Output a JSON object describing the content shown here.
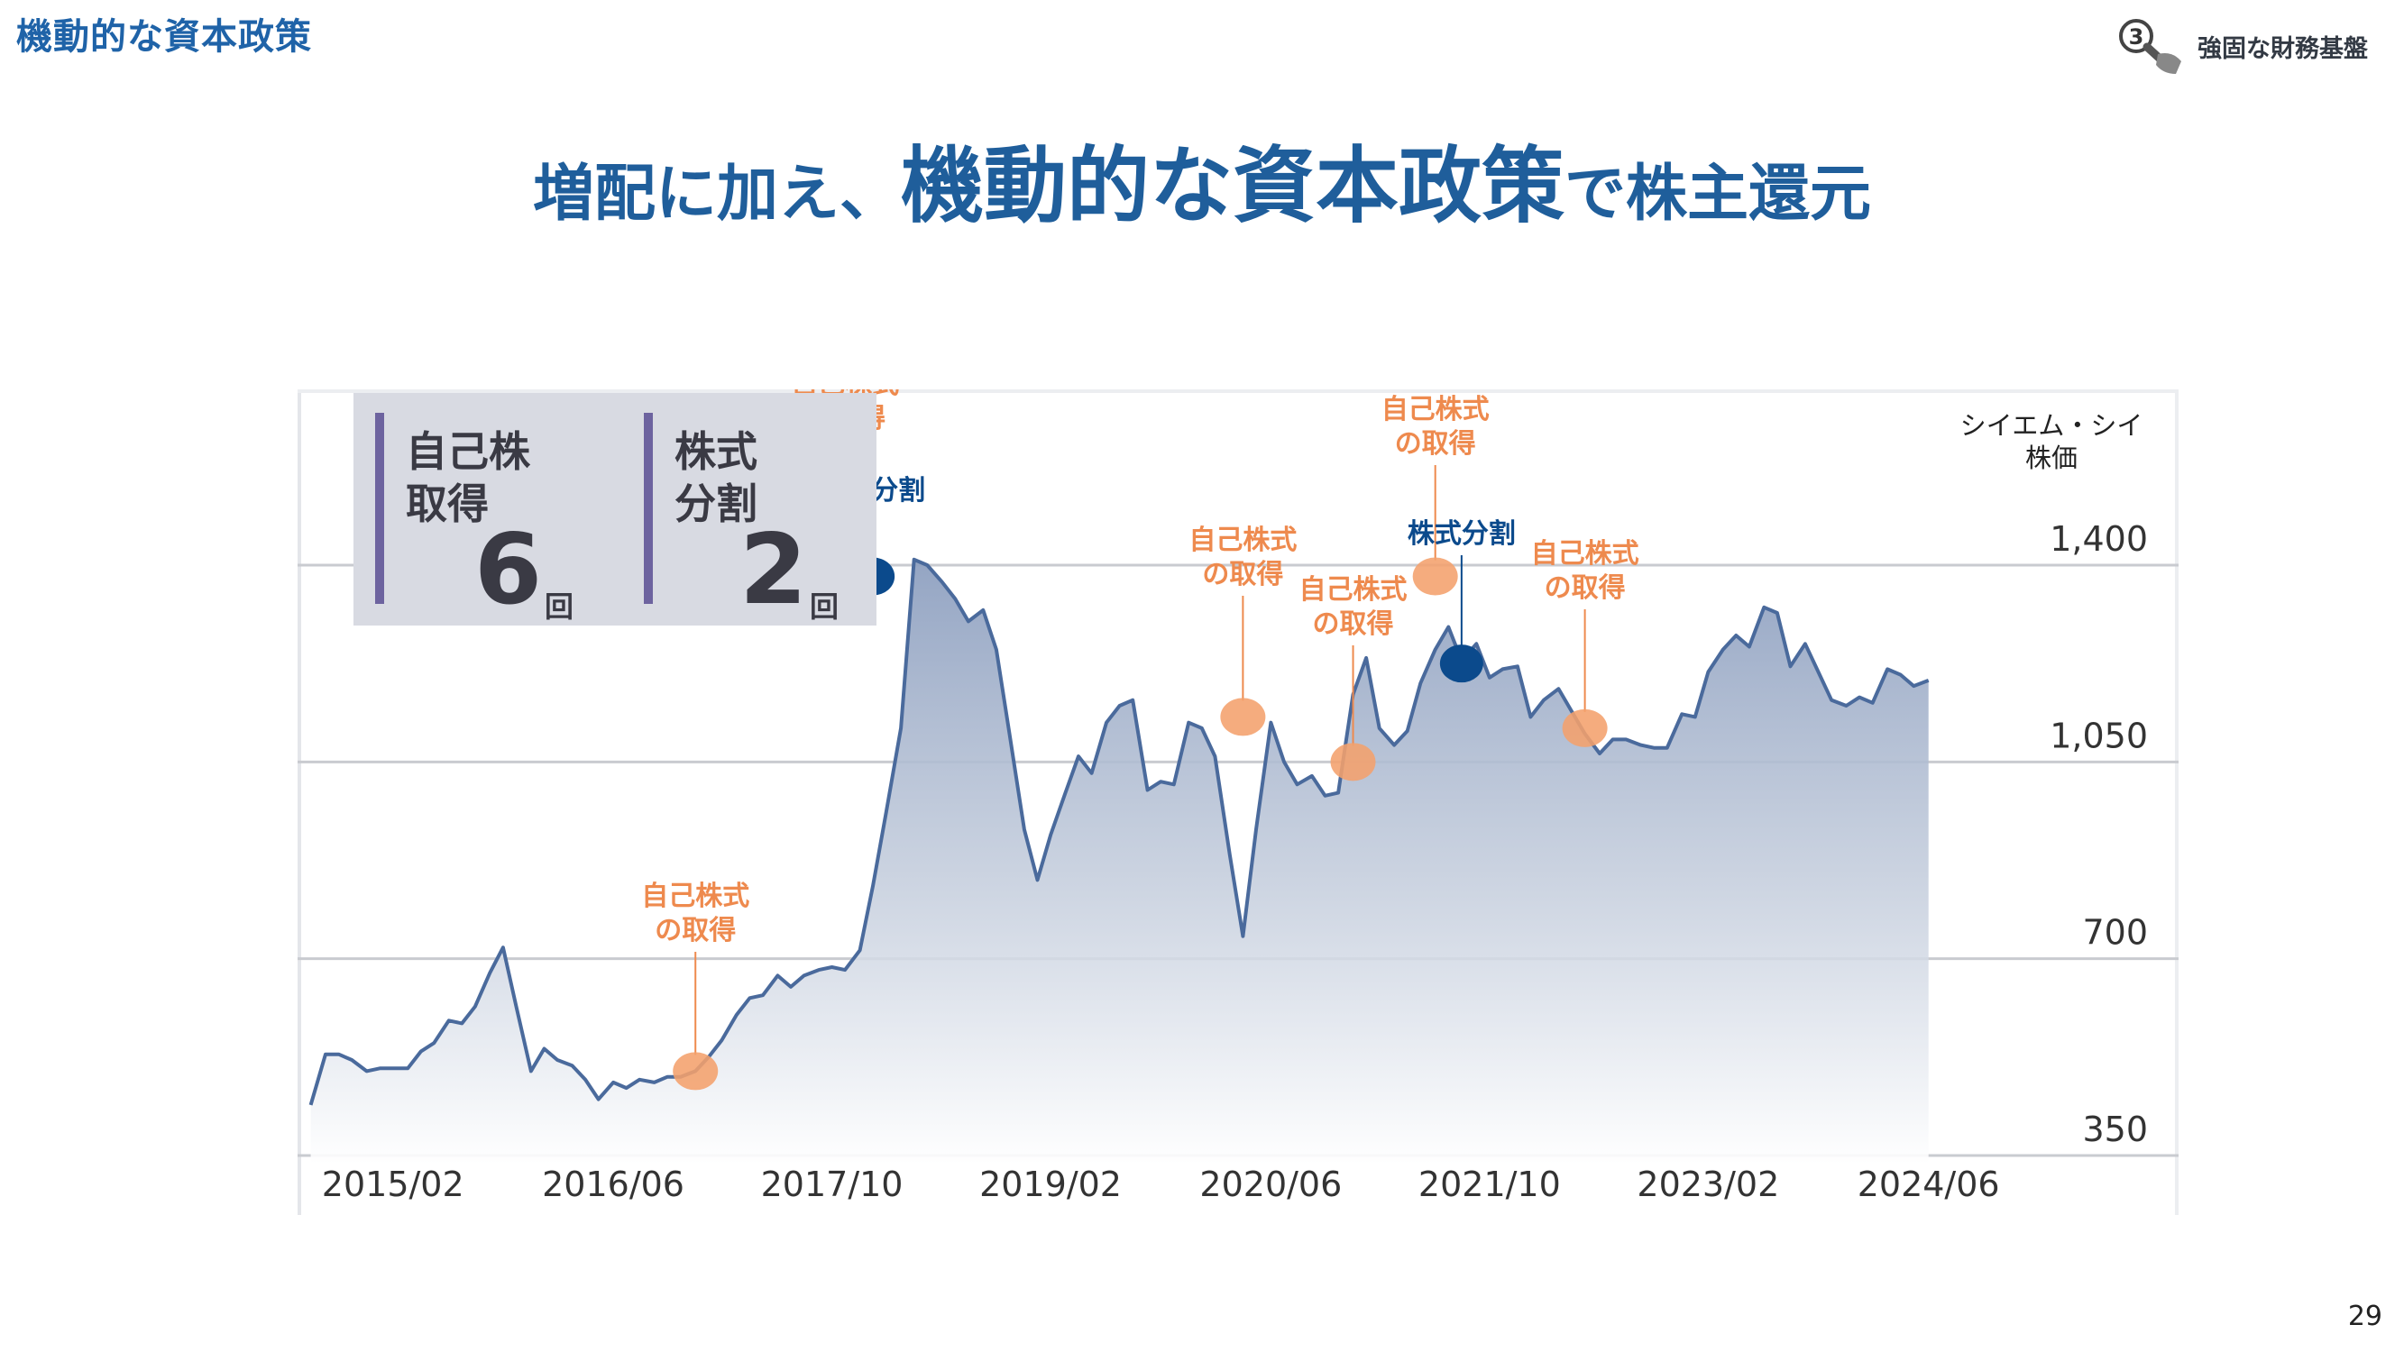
{
  "header": {
    "section_title": "機動的な資本政策",
    "top_right_label": "強固な財務基盤",
    "badge_number": "3"
  },
  "headline": {
    "part1": "増配に加え、",
    "part2": "機動的な資本政策",
    "part3": "で株主還元"
  },
  "stats": [
    {
      "label": "自己株\n取得",
      "value": "6",
      "unit": "回"
    },
    {
      "label": "株式\n分割",
      "value": "2",
      "unit": "回"
    }
  ],
  "page_number": "29",
  "colors": {
    "accent": "#1f5e9b",
    "line": "#4a6a9c",
    "buyback_marker": "#f4a06c",
    "split_marker": "#0b4a8c",
    "stat_bar": "#6d639f"
  },
  "chart_data": {
    "type": "area",
    "title": "",
    "y_axis_title": "シイエム・シイ\n株価",
    "ylim": [
      350,
      1500
    ],
    "y_ticks": [
      350,
      700,
      1050,
      1400
    ],
    "y_tick_labels": [
      "350",
      "700",
      "1,050",
      "1,400"
    ],
    "grid": true,
    "x_ticks": [
      {
        "value": 2015.08,
        "label": "2015/02"
      },
      {
        "value": 2016.42,
        "label": "2016/06"
      },
      {
        "value": 2017.75,
        "label": "2017/10"
      },
      {
        "value": 2019.08,
        "label": "2019/02"
      },
      {
        "value": 2020.42,
        "label": "2020/06"
      },
      {
        "value": 2021.75,
        "label": "2021/10"
      },
      {
        "value": 2023.08,
        "label": "2023/02"
      },
      {
        "value": 2024.42,
        "label": "2024/06"
      }
    ],
    "xlim": [
      2014.5,
      2025.25
    ],
    "series": [
      {
        "x": [
          2014.58,
          2014.67,
          2014.75,
          2014.83,
          2014.92,
          2015.0,
          2015.08,
          2015.17,
          2015.25,
          2015.33,
          2015.42,
          2015.5,
          2015.58,
          2015.67,
          2015.75,
          2015.83,
          2015.92,
          2016.0,
          2016.08,
          2016.17,
          2016.25,
          2016.33,
          2016.42,
          2016.5,
          2016.58,
          2016.67,
          2016.75,
          2016.83,
          2016.92,
          2017.0,
          2017.08,
          2017.17,
          2017.25,
          2017.33,
          2017.42,
          2017.5,
          2017.58,
          2017.67,
          2017.75,
          2017.83,
          2017.92,
          2018.0,
          2018.08,
          2018.17,
          2018.25,
          2018.33,
          2018.42,
          2018.5,
          2018.58,
          2018.67,
          2018.75,
          2018.83,
          2018.92,
          2019.0,
          2019.08,
          2019.17,
          2019.25,
          2019.33,
          2019.42,
          2019.5,
          2019.58,
          2019.67,
          2019.75,
          2019.83,
          2019.92,
          2020.0,
          2020.08,
          2020.17,
          2020.25,
          2020.33,
          2020.42,
          2020.5,
          2020.58,
          2020.67,
          2020.75,
          2020.83,
          2020.92,
          2021.0,
          2021.08,
          2021.17,
          2021.25,
          2021.33,
          2021.42,
          2021.5,
          2021.58,
          2021.67,
          2021.75,
          2021.83,
          2021.92,
          2022.0,
          2022.08,
          2022.17,
          2022.25,
          2022.33,
          2022.42,
          2022.5,
          2022.58,
          2022.67,
          2022.75,
          2022.83,
          2022.92,
          2023.0,
          2023.08,
          2023.17,
          2023.25,
          2023.33,
          2023.42,
          2023.5,
          2023.58,
          2023.67,
          2023.75,
          2023.83,
          2023.92,
          2024.0,
          2024.08,
          2024.17,
          2024.25,
          2024.33,
          2024.42
        ],
        "values": [
          440,
          530,
          530,
          520,
          500,
          505,
          505,
          505,
          535,
          550,
          590,
          585,
          615,
          675,
          720,
          615,
          500,
          540,
          520,
          510,
          485,
          450,
          480,
          470,
          485,
          480,
          490,
          490,
          500,
          525,
          555,
          600,
          630,
          635,
          670,
          650,
          670,
          680,
          685,
          680,
          715,
          830,
          960,
          1110,
          1410,
          1400,
          1370,
          1340,
          1300,
          1320,
          1250,
          1100,
          930,
          840,
          920,
          995,
          1060,
          1030,
          1120,
          1150,
          1160,
          1000,
          1015,
          1010,
          1120,
          1110,
          1060,
          885,
          740,
          930,
          1120,
          1050,
          1010,
          1025,
          990,
          995,
          1170,
          1235,
          1110,
          1080,
          1105,
          1190,
          1250,
          1290,
          1230,
          1260,
          1200,
          1215,
          1220,
          1130,
          1160,
          1180,
          1140,
          1100,
          1065,
          1090,
          1090,
          1080,
          1075,
          1075,
          1135,
          1130,
          1210,
          1250,
          1275,
          1255,
          1325,
          1315,
          1220,
          1260,
          1210,
          1160,
          1150,
          1165,
          1155,
          1215,
          1205,
          1185,
          1195
        ]
      }
    ],
    "markers": [
      {
        "type": "buyback",
        "x": 2016.92,
        "y": 500,
        "label": "自己株式\nの取得"
      },
      {
        "type": "buyback",
        "x": 2017.83,
        "y": 1410,
        "label": "自己株式\nの取得"
      },
      {
        "type": "split",
        "x": 2018.0,
        "y": 1380,
        "label": "株式分割"
      },
      {
        "type": "buyback",
        "x": 2020.25,
        "y": 1130,
        "label": "自己株式\nの取得"
      },
      {
        "type": "buyback",
        "x": 2020.92,
        "y": 1050,
        "label": "自己株式\nの取得"
      },
      {
        "type": "buyback",
        "x": 2021.42,
        "y": 1380,
        "label": "自己株式\nの取得"
      },
      {
        "type": "split",
        "x": 2021.58,
        "y": 1225,
        "label": "株式分割"
      },
      {
        "type": "buyback",
        "x": 2022.33,
        "y": 1110,
        "label": "自己株式\nの取得"
      }
    ]
  }
}
